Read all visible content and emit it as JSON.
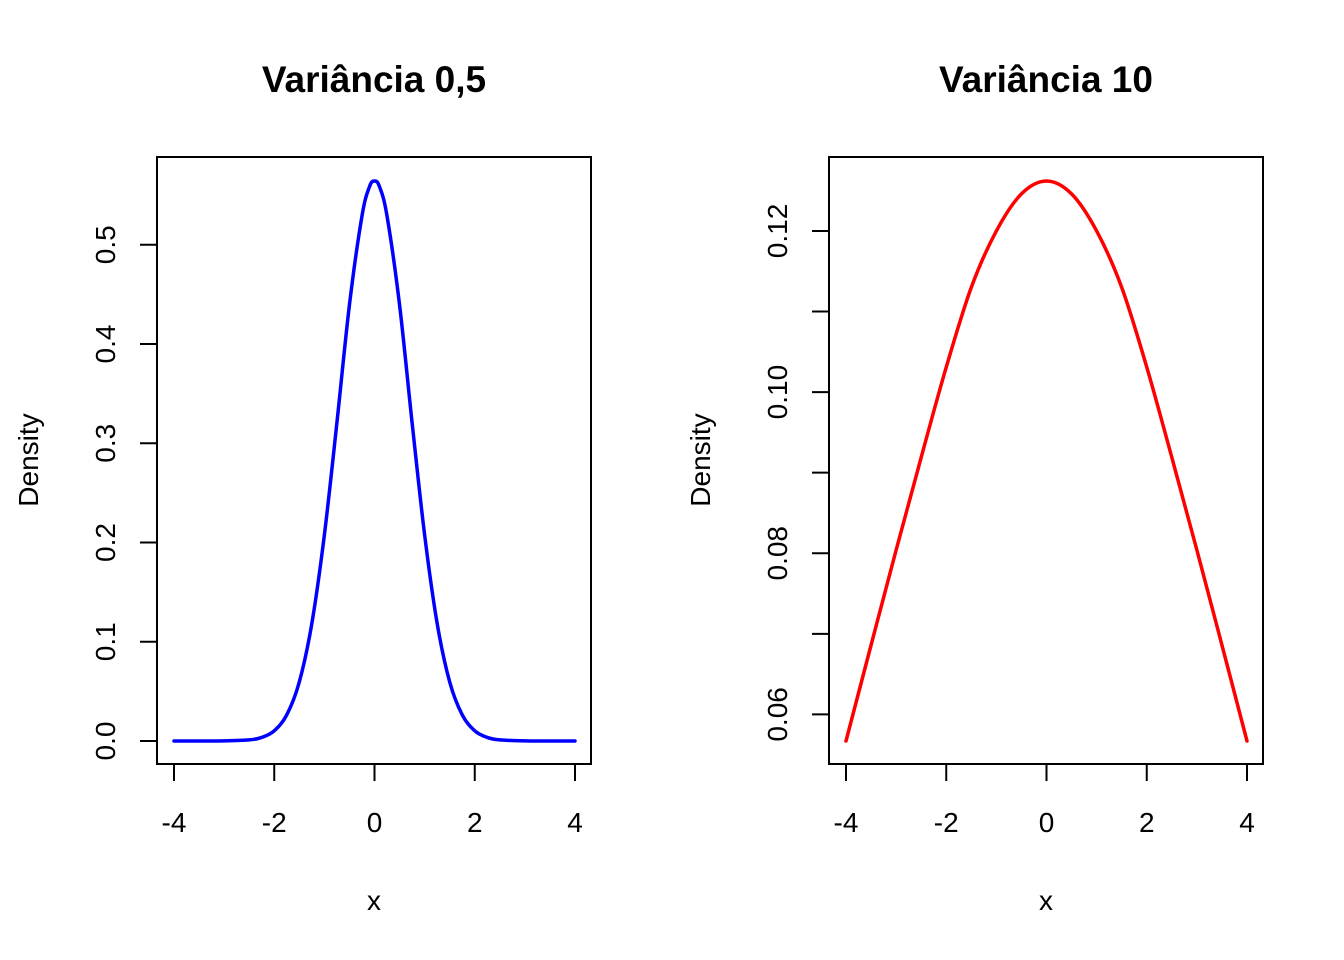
{
  "chart_data": [
    {
      "type": "line",
      "title": "Variância 0,5",
      "xlabel": "x",
      "ylabel": "Density",
      "xlim": [
        -4,
        4
      ],
      "ylim": [
        0,
        0.5642
      ],
      "xticks": [
        -4,
        -2,
        0,
        2,
        4
      ],
      "xtick_labels": [
        "-4",
        "-2",
        "0",
        "2",
        "4"
      ],
      "yticks": [
        0.0,
        0.1,
        0.2,
        0.3,
        0.4,
        0.5
      ],
      "ytick_labels": [
        "0.0",
        "0.1",
        "0.2",
        "0.3",
        "0.4",
        "0.5"
      ],
      "grid": false,
      "series": [
        {
          "color": "#0000ff",
          "x": [
            -4.0,
            -3.5,
            -3.0,
            -2.5,
            -2.25,
            -2.0,
            -1.75,
            -1.5,
            -1.25,
            -1.0,
            -0.75,
            -0.5,
            -0.25,
            -0.1,
            0.0,
            0.1,
            0.25,
            0.5,
            0.75,
            1.0,
            1.25,
            1.5,
            1.75,
            2.0,
            2.25,
            2.5,
            3.0,
            3.5,
            4.0
          ],
          "y": [
            0.0,
            0.0,
            0.0001,
            0.0011,
            0.0036,
            0.0103,
            0.0264,
            0.0595,
            0.1184,
            0.2076,
            0.3207,
            0.4394,
            0.5289,
            0.5585,
            0.5642,
            0.5585,
            0.5289,
            0.4394,
            0.3207,
            0.2076,
            0.1184,
            0.0595,
            0.0264,
            0.0103,
            0.0036,
            0.0011,
            0.0001,
            0.0,
            0.0
          ]
        }
      ]
    },
    {
      "type": "line",
      "title": "Variância 10",
      "xlabel": "x",
      "ylabel": "Density",
      "xlim": [
        -4,
        4
      ],
      "ylim": [
        0.0567,
        0.1262
      ],
      "xticks": [
        -4,
        -2,
        0,
        2,
        4
      ],
      "xtick_labels": [
        "-4",
        "-2",
        "0",
        "2",
        "4"
      ],
      "yticks": [
        0.06,
        0.07,
        0.08,
        0.09,
        0.1,
        0.11,
        0.12
      ],
      "ytick_labels": [
        "0.06",
        "",
        "0.08",
        "",
        "0.10",
        "",
        "0.12"
      ],
      "grid": false,
      "series": [
        {
          "color": "#ff0000",
          "x": [
            -4.0,
            -3.5,
            -3.0,
            -2.5,
            -2.0,
            -1.5,
            -1.0,
            -0.5,
            0.0,
            0.5,
            1.0,
            1.5,
            2.0,
            2.5,
            3.0,
            3.5,
            4.0
          ],
          "y": [
            0.0567,
            0.0686,
            0.0804,
            0.0919,
            0.1031,
            0.113,
            0.12,
            0.1246,
            0.1262,
            0.1246,
            0.12,
            0.113,
            0.1031,
            0.0919,
            0.0804,
            0.0686,
            0.0567
          ]
        }
      ]
    }
  ]
}
